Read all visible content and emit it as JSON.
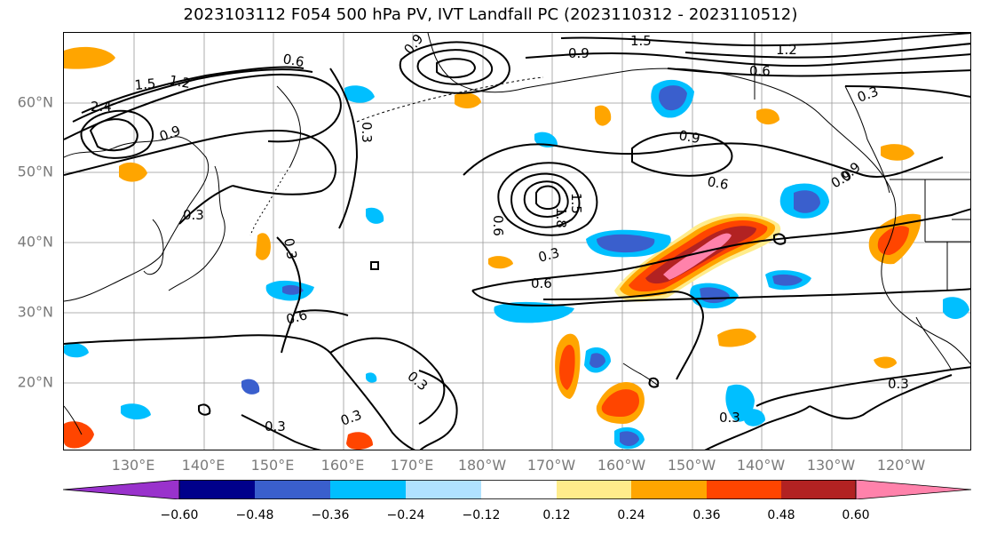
{
  "title": "2023103112 F054 500 hPa PV, IVT Landfall PC (2023110312 - 2023110512)",
  "lat_labels": [
    "60°N",
    "50°N",
    "40°N",
    "30°N",
    "20°N"
  ],
  "lon_labels": [
    "130°E",
    "140°E",
    "150°E",
    "160°E",
    "170°E",
    "180°W",
    "170°W",
    "160°W",
    "150°W",
    "140°W",
    "130°W",
    "120°W"
  ],
  "colorbar": {
    "ticks": [
      "−0.60",
      "−0.48",
      "−0.36",
      "−0.24",
      "−0.12",
      "0.12",
      "0.24",
      "0.36",
      "0.48",
      "0.60"
    ],
    "colors": [
      "#9932cc",
      "#00008b",
      "#3a5fcd",
      "#00bfff",
      "#b0e2ff",
      "#ffffff",
      "#ffec8b",
      "#ffa500",
      "#ff4500",
      "#b22222",
      "#ff82ab"
    ]
  },
  "contour_labels": {
    "c1": "0.6",
    "c2": "1.2",
    "c3": "1.5",
    "c4": "2.4",
    "c5": "0.9",
    "c6": "0.3",
    "c7": "0.9",
    "c8": "1.5",
    "c9": "0.9",
    "c10": "1.2",
    "c11": "0.6",
    "c12": "0.3",
    "c13": "0.9",
    "c14": "0.6",
    "c15": "0.9",
    "c16": "0.3",
    "c17": "0.3",
    "c18": "0.6",
    "c19": "0.6",
    "c20": "0.3",
    "c21": "0.3",
    "c22": "0.3",
    "c23": "0.3",
    "c24": "0.3",
    "c25": "0.3",
    "c26": "0.6",
    "c27": "0.9",
    "c28": "1.8",
    "c29": "1.5"
  }
}
